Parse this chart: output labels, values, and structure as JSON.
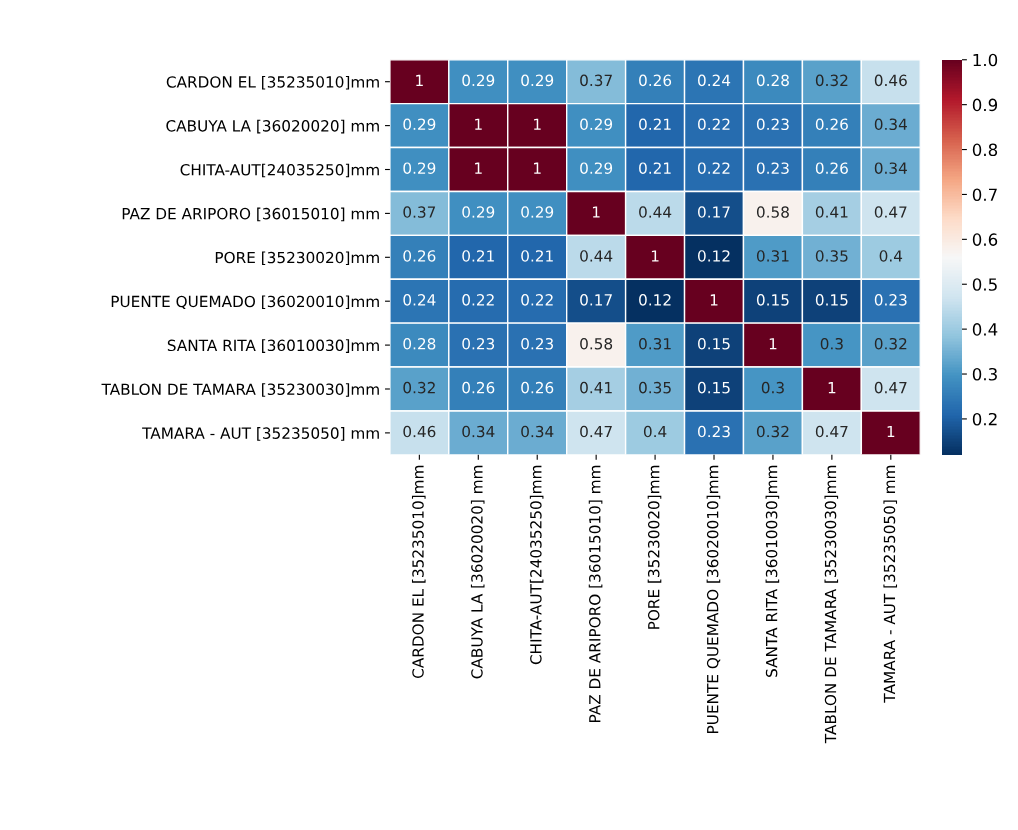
{
  "chart_data": {
    "type": "heatmap",
    "categories": [
      "CARDON EL [35235010]mm",
      "CABUYA LA [36020020] mm",
      "CHITA-AUT[24035250]mm",
      "PAZ DE ARIPORO [36015010] mm",
      "PORE [35230020]mm",
      "PUENTE QUEMADO [36020010]mm",
      "SANTA RITA [36010030]mm",
      "TABLON DE TAMARA [35230030]mm",
      "TAMARA - AUT [35235050] mm"
    ],
    "y_categories": [
      "CARDON EL [35235010]mm",
      "CABUYA LA [36020020] mm",
      "CHITA-AUT[24035250]mm",
      "PAZ DE ARIPORO [36015010] mm",
      "PORE [35230020]mm",
      "PUENTE QUEMADO [36020010]mm",
      "SANTA RITA [36010030]mm",
      "TABLON DE TAMARA [35230030]mm",
      "TAMARA - AUT [35235050] mm"
    ],
    "cells": [
      [
        1,
        0.29,
        0.29,
        0.37,
        0.26,
        0.24,
        0.28,
        0.32,
        0.46
      ],
      [
        0.29,
        1,
        1,
        0.29,
        0.21,
        0.22,
        0.23,
        0.26,
        0.34
      ],
      [
        0.29,
        1,
        1,
        0.29,
        0.21,
        0.22,
        0.23,
        0.26,
        0.34
      ],
      [
        0.37,
        0.29,
        0.29,
        1,
        0.44,
        0.17,
        0.58,
        0.41,
        0.47
      ],
      [
        0.26,
        0.21,
        0.21,
        0.44,
        1,
        0.12,
        0.31,
        0.35,
        0.4
      ],
      [
        0.24,
        0.22,
        0.22,
        0.17,
        0.12,
        1,
        0.15,
        0.15,
        0.23
      ],
      [
        0.28,
        0.23,
        0.23,
        0.58,
        0.31,
        0.15,
        1,
        0.3,
        0.32
      ],
      [
        0.32,
        0.26,
        0.26,
        0.41,
        0.35,
        0.15,
        0.3,
        1,
        0.47
      ],
      [
        0.46,
        0.34,
        0.34,
        0.47,
        0.4,
        0.23,
        0.32,
        0.47,
        1
      ]
    ],
    "clim": [
      0.12,
      1
    ],
    "cticks": [
      {
        "value": 0.2,
        "label": "0.2"
      },
      {
        "value": 0.3,
        "label": "0.3"
      },
      {
        "value": 0.4,
        "label": "0.4"
      },
      {
        "value": 0.5,
        "label": "0.5"
      },
      {
        "value": 0.6,
        "label": "0.6"
      },
      {
        "value": 0.7,
        "label": "0.7"
      },
      {
        "value": 0.8,
        "label": "0.8"
      },
      {
        "value": 0.9,
        "label": "0.9"
      },
      {
        "value": 1,
        "label": "1.0"
      }
    ],
    "data_labels": true
  }
}
